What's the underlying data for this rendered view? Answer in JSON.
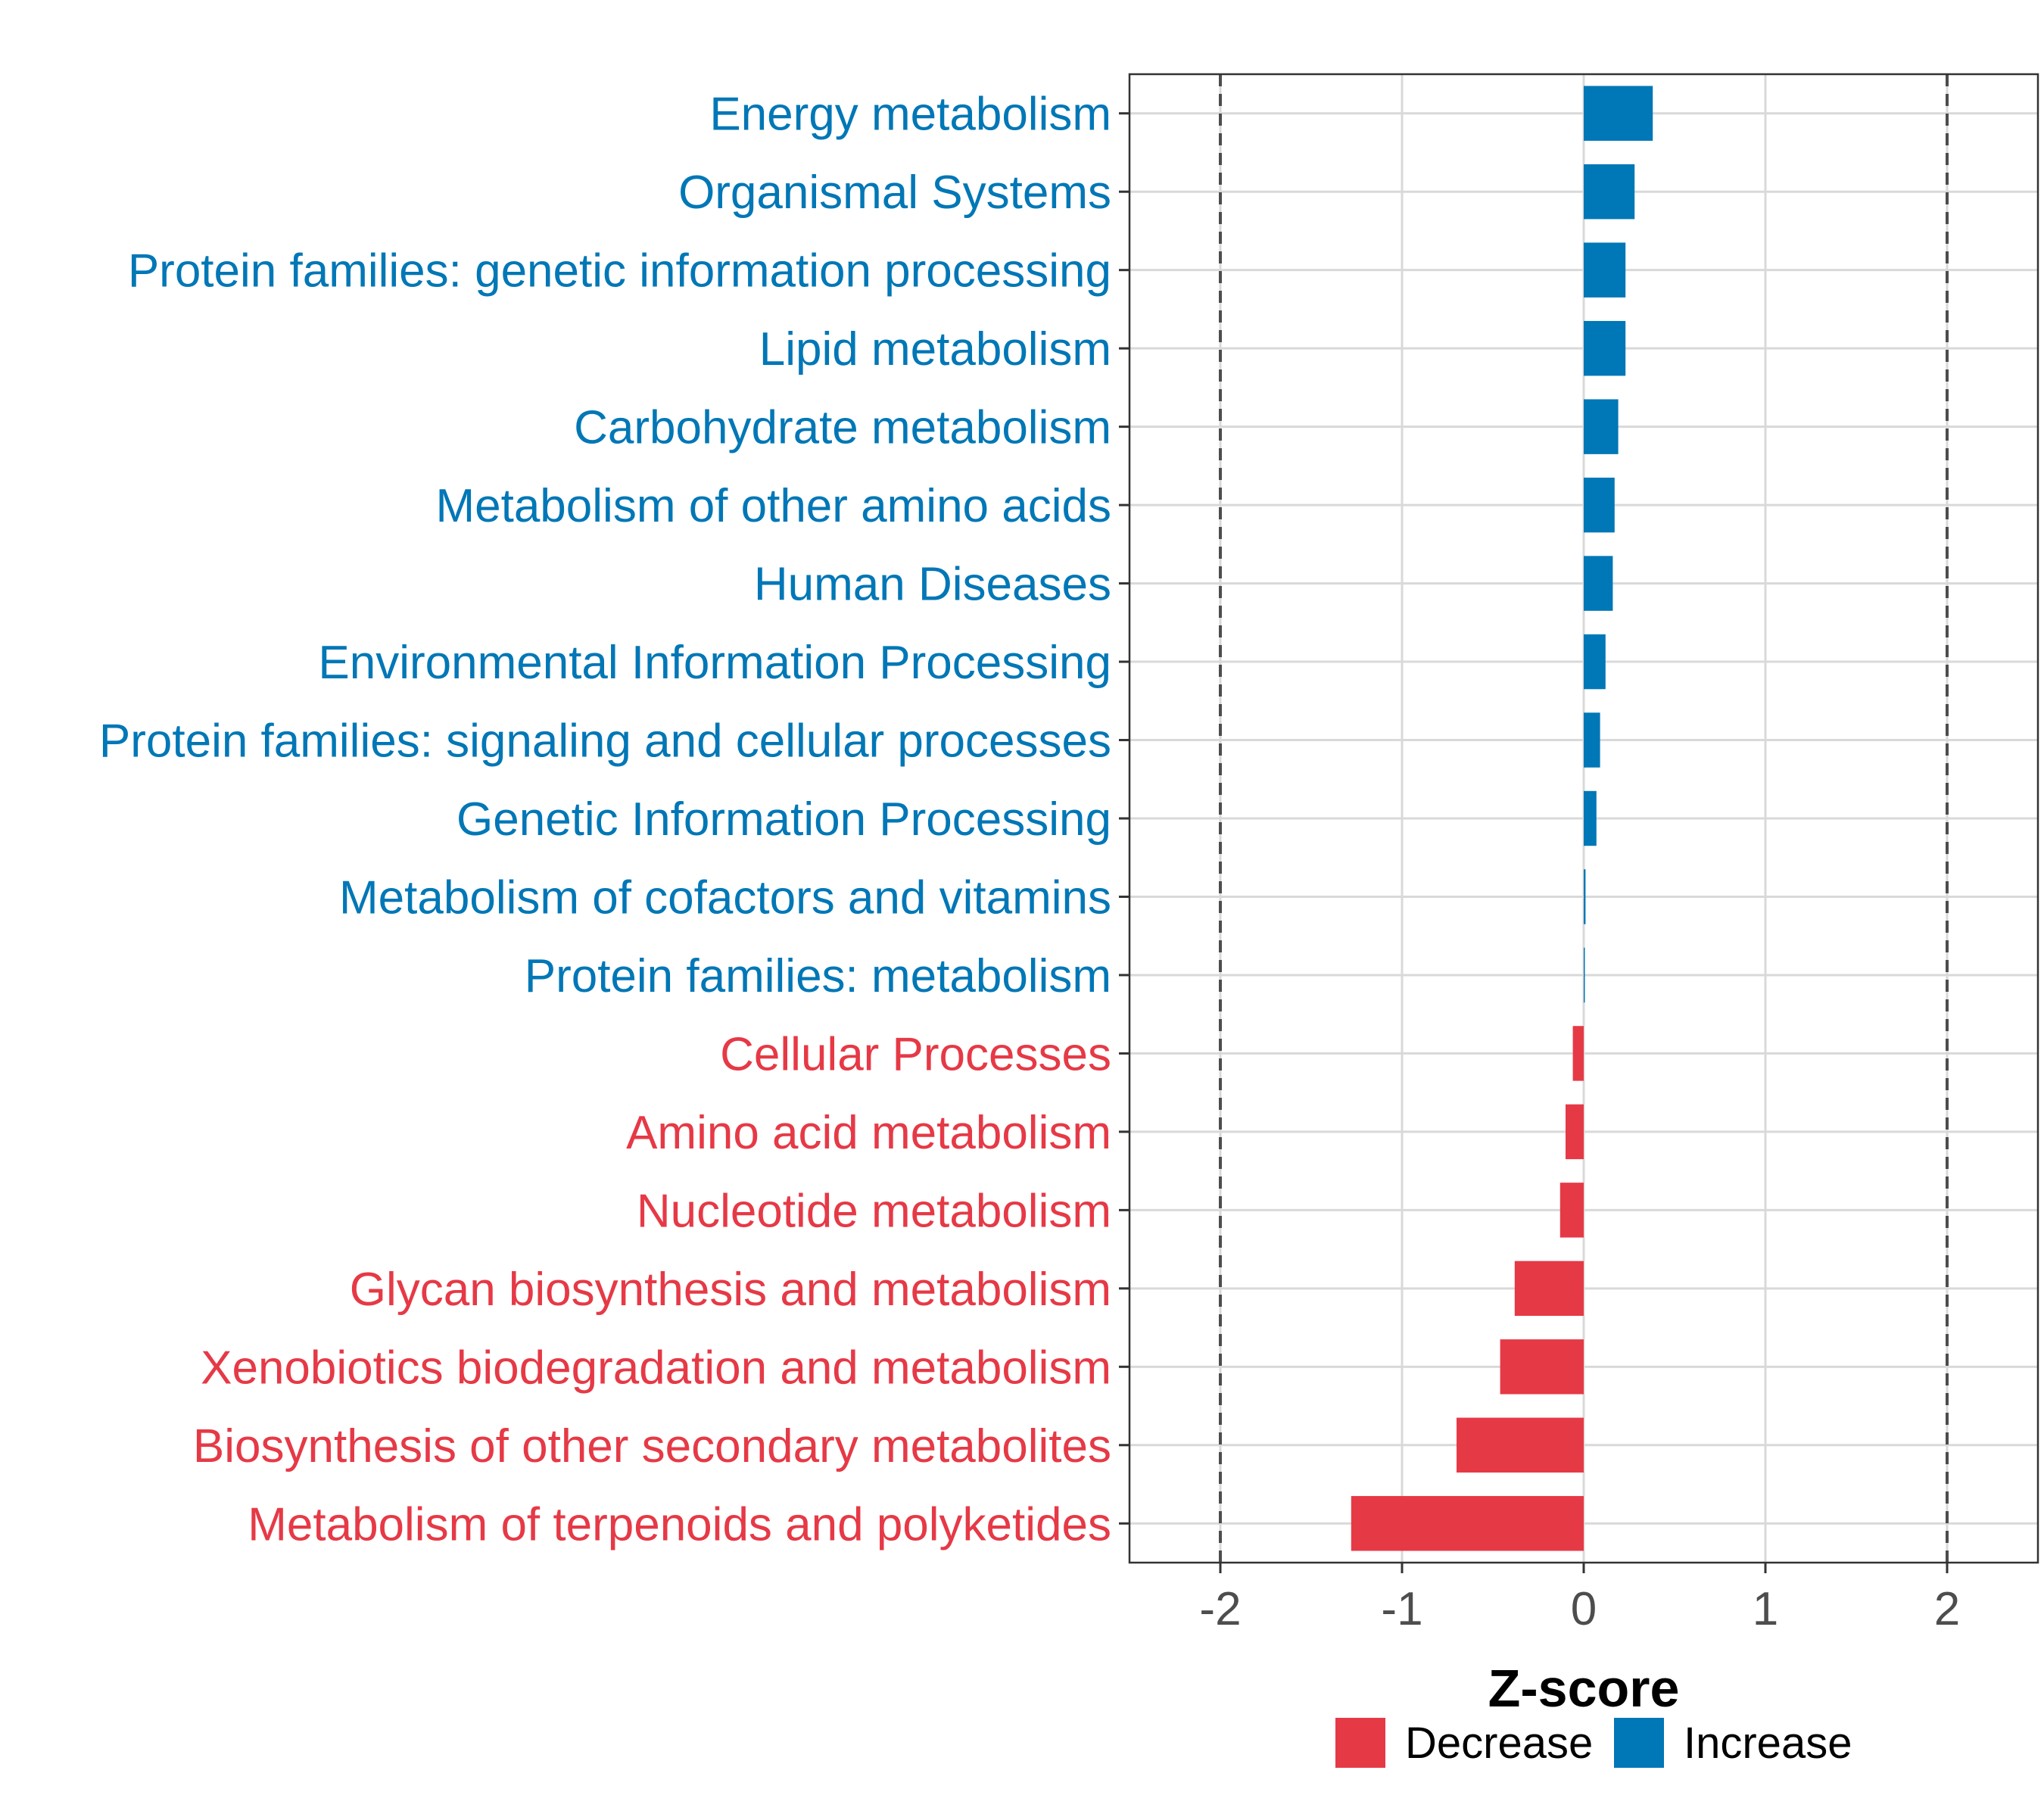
{
  "chart_data": {
    "type": "bar",
    "orientation": "horizontal",
    "title": "",
    "xlabel": "Z-score",
    "ylabel": "",
    "xlim": [
      -2.5,
      2.5
    ],
    "xticks": [
      -2,
      -1,
      0,
      1,
      2
    ],
    "xtick_labels": [
      "-2",
      "-1",
      "0",
      "1",
      "2"
    ],
    "reference_lines": [
      -2,
      2
    ],
    "grid": true,
    "legend_position": "bottom",
    "legend": [
      {
        "label": "Decrease",
        "color": "#E63946"
      },
      {
        "label": "Increase",
        "color": "#0077B6"
      }
    ],
    "categories": [
      "Energy metabolism",
      "Organismal Systems",
      "Protein families: genetic information processing",
      "Lipid metabolism",
      "Carbohydrate metabolism",
      "Metabolism of other amino acids",
      "Human Diseases",
      "Environmental Information Processing",
      "Protein families: signaling and cellular processes",
      "Genetic Information Processing",
      "Metabolism of cofactors and vitamins",
      "Protein families: metabolism",
      "Cellular Processes",
      "Amino acid metabolism",
      "Nucleotide metabolism",
      "Glycan biosynthesis and metabolism",
      "Xenobiotics biodegradation and metabolism",
      "Biosynthesis of other secondary metabolites",
      "Metabolism of terpenoids and polyketides"
    ],
    "values": [
      0.38,
      0.28,
      0.23,
      0.23,
      0.19,
      0.17,
      0.16,
      0.12,
      0.09,
      0.07,
      0.01,
      0.005,
      -0.06,
      -0.1,
      -0.13,
      -0.38,
      -0.46,
      -0.7,
      -1.28
    ],
    "groups": [
      "Increase",
      "Increase",
      "Increase",
      "Increase",
      "Increase",
      "Increase",
      "Increase",
      "Increase",
      "Increase",
      "Increase",
      "Increase",
      "Increase",
      "Decrease",
      "Decrease",
      "Decrease",
      "Decrease",
      "Decrease",
      "Decrease",
      "Decrease"
    ]
  }
}
